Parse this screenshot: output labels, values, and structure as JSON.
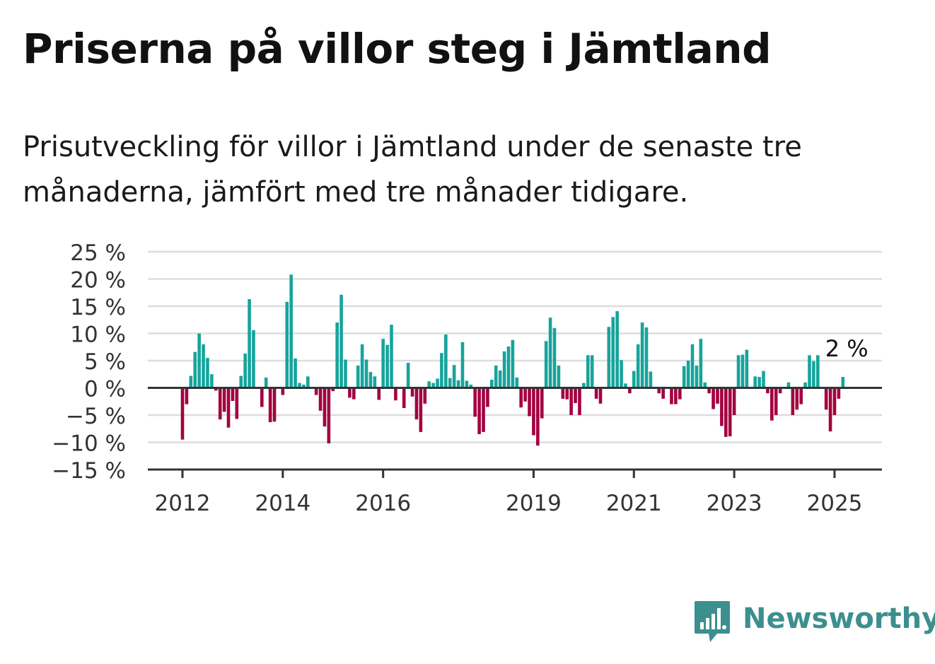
{
  "title": "Priserna på villor steg i Jämtland",
  "subtitle": "Prisutveckling för villor i Jämtland under de senaste tre månaderna, jämfört med tre månader tidigare.",
  "logo_text": "Newsworthy",
  "colors": {
    "positive": "#16a49c",
    "negative": "#a3003f",
    "grid": "#dddddd",
    "axis": "#333333",
    "logo": "#3d8f8f"
  },
  "chart_data": {
    "type": "bar",
    "title": "",
    "xlabel": "",
    "ylabel": "",
    "ylim": [
      -15,
      25
    ],
    "yticks": [
      -15,
      -10,
      -5,
      0,
      5,
      10,
      15,
      20,
      25
    ],
    "ytick_labels": [
      "−15 %",
      "−10 %",
      "−5 %",
      "0 %",
      "5 %",
      "10 %",
      "15 %",
      "20 %",
      "25 %"
    ],
    "xticks": [
      {
        "index": 0,
        "label": "2012"
      },
      {
        "index": 24,
        "label": "2014"
      },
      {
        "index": 48,
        "label": "2016"
      },
      {
        "index": 84,
        "label": "2019"
      },
      {
        "index": 108,
        "label": "2021"
      },
      {
        "index": 132,
        "label": "2023"
      },
      {
        "index": 156,
        "label": "2025"
      }
    ],
    "grid": true,
    "annotation": {
      "text": "2 %",
      "index": 159
    },
    "values": [
      -9.5,
      -3,
      2.2,
      6.6,
      10,
      8,
      5.5,
      2.5,
      -0.5,
      -5.8,
      -4.4,
      -7.3,
      -2.4,
      -5.7,
      2.2,
      6.3,
      16.3,
      10.6,
      0,
      -3.5,
      1.9,
      -6.3,
      -6.2,
      0,
      -1.3,
      15.8,
      20.8,
      5.4,
      0.9,
      0.6,
      2.1,
      0,
      -1.3,
      -4.2,
      -7.1,
      -10.2,
      -0.6,
      12,
      17.1,
      5.2,
      -1.8,
      -2.1,
      4.1,
      8,
      5.2,
      2.9,
      2.1,
      -2.2,
      9,
      7.9,
      11.6,
      -2.3,
      0,
      -3.7,
      4.6,
      -1.6,
      -5.8,
      -8.1,
      -2.9,
      1.2,
      0.9,
      1.7,
      6.4,
      9.8,
      1.8,
      4.2,
      1.4,
      8.4,
      1.3,
      0.6,
      -5.3,
      -8.5,
      -8.1,
      -3.5,
      1.5,
      4.1,
      3.2,
      6.7,
      7.6,
      8.8,
      1.9,
      -3.6,
      -2.5,
      -5.2,
      -8.7,
      -10.6,
      -5.6,
      8.6,
      12.9,
      11,
      4.1,
      -2,
      -2.1,
      -5,
      -2.8,
      -5,
      0.9,
      6,
      6,
      -2,
      -2.9,
      0,
      11.2,
      13,
      14.1,
      5.1,
      0.8,
      -1,
      3.1,
      8,
      12,
      11.1,
      3,
      0,
      -1,
      -2,
      0,
      -3,
      -3,
      -2.1,
      4,
      5,
      8,
      4.1,
      9,
      1,
      -1,
      -3.9,
      -2.9,
      -7,
      -9,
      -8.9,
      -5,
      6,
      6.1,
      7,
      0,
      2.1,
      2,
      3.1,
      -1,
      -6,
      -5,
      -1,
      0,
      1,
      -5,
      -4,
      -3,
      1,
      6,
      4.9,
      6,
      0,
      -4,
      -8,
      -5,
      -2,
      2
    ]
  }
}
